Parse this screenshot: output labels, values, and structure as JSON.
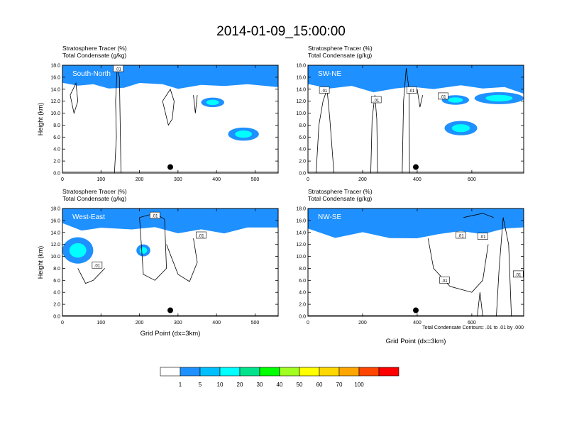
{
  "title": "2014-01-09_15:00:00",
  "colors": {
    "frame": "#000000",
    "background": "#ffffff",
    "contour": "#000000"
  },
  "chart_data": [
    {
      "type": "heatmap",
      "section_label": "South-North",
      "subtitle_lines": [
        "Stratosphere Tracer   (%)",
        "Total Condensate   (g/kg)"
      ],
      "ylabel": "Height (km)",
      "xlabel": "",
      "xlim": [
        0,
        560
      ],
      "ylim": [
        0,
        18
      ],
      "x_ticks": [
        "0",
        "100",
        "200",
        "300",
        "400",
        "500"
      ],
      "x_tick_values": [
        0,
        100,
        200,
        300,
        400,
        500
      ],
      "y_ticks": [
        "0.0",
        "2.0",
        "4.0",
        "6.0",
        "8.0",
        "10.0",
        "12.0",
        "14.0",
        "16.0",
        "18.0"
      ],
      "contour_labels": [
        ".01"
      ],
      "contour_label_pos": [
        [
          145,
          17.4
        ]
      ],
      "marker_x": 280,
      "tropopause_base": [
        [
          0,
          15.0
        ],
        [
          40,
          14.6
        ],
        [
          80,
          14.9
        ],
        [
          120,
          14.0
        ],
        [
          160,
          14.4
        ],
        [
          200,
          14.9
        ],
        [
          260,
          14.7
        ],
        [
          300,
          14.2
        ],
        [
          360,
          14.8
        ],
        [
          420,
          14.5
        ],
        [
          480,
          14.7
        ],
        [
          560,
          14.3
        ]
      ],
      "blue_blobs": [
        [
          470,
          6.5,
          40,
          1.1
        ],
        [
          390,
          11.8,
          30,
          0.8
        ]
      ],
      "cloud_outlines": [
        [
          [
            135,
            0
          ],
          [
            140,
            6
          ],
          [
            138,
            12
          ],
          [
            142,
            17.5
          ],
          [
            148,
            16
          ],
          [
            150,
            8
          ],
          [
            152,
            0
          ]
        ],
        [
          [
            20,
            13
          ],
          [
            30,
            10
          ],
          [
            40,
            12
          ],
          [
            35,
            15
          ],
          [
            20,
            13
          ]
        ],
        [
          [
            260,
            12
          ],
          [
            275,
            8
          ],
          [
            285,
            9
          ],
          [
            290,
            12
          ],
          [
            280,
            14
          ],
          [
            260,
            12
          ]
        ],
        [
          [
            340,
            13
          ],
          [
            345,
            10
          ],
          [
            350,
            13
          ]
        ]
      ]
    },
    {
      "type": "heatmap",
      "section_label": "SW-NE",
      "subtitle_lines": [
        "Stratosphere Tracer   (%)",
        "Total Condensate   (g/kg)"
      ],
      "ylabel": "",
      "xlabel": "",
      "xlim": [
        0,
        790
      ],
      "ylim": [
        0,
        18
      ],
      "x_ticks": [
        "0",
        "200",
        "400",
        "600"
      ],
      "x_tick_values": [
        0,
        200,
        400,
        600
      ],
      "y_ticks": [
        "0.0",
        "2.0",
        "4.0",
        "6.0",
        "8.0",
        "10.0",
        "12.0",
        "14.0",
        "16.0",
        "18.0"
      ],
      "contour_labels": [
        ".01",
        ".01",
        ".01",
        ".01"
      ],
      "contour_label_pos": [
        [
          60,
          13.8
        ],
        [
          250,
          12.2
        ],
        [
          380,
          13.8
        ],
        [
          495,
          12.8
        ]
      ],
      "marker_x": 395,
      "tropopause_base": [
        [
          0,
          14.8
        ],
        [
          80,
          14.2
        ],
        [
          160,
          14.7
        ],
        [
          240,
          13.6
        ],
        [
          320,
          14.1
        ],
        [
          380,
          14.5
        ],
        [
          460,
          14.0
        ],
        [
          560,
          14.6
        ],
        [
          640,
          14.2
        ],
        [
          720,
          14.5
        ],
        [
          790,
          13.4
        ]
      ],
      "blue_blobs": [
        [
          560,
          7.5,
          60,
          1.2
        ],
        [
          700,
          12.5,
          90,
          1.0
        ],
        [
          540,
          12.2,
          50,
          0.8
        ]
      ],
      "cloud_outlines": [
        [
          [
            30,
            0
          ],
          [
            40,
            8
          ],
          [
            55,
            12
          ],
          [
            70,
            14
          ],
          [
            80,
            9
          ],
          [
            95,
            0
          ]
        ],
        [
          [
            230,
            0
          ],
          [
            235,
            9
          ],
          [
            245,
            13
          ],
          [
            252,
            9
          ],
          [
            255,
            0
          ]
        ],
        [
          [
            345,
            0
          ],
          [
            350,
            12
          ],
          [
            360,
            17.5
          ],
          [
            370,
            14
          ],
          [
            372,
            0
          ]
        ],
        [
          [
            400,
            14
          ],
          [
            410,
            11
          ],
          [
            420,
            13
          ]
        ]
      ]
    },
    {
      "type": "heatmap",
      "section_label": "West-East",
      "subtitle_lines": [
        "Stratosphere Tracer   (%)",
        "Total Condensate   (g/kg)"
      ],
      "ylabel": "Height (km)",
      "xlabel": "Grid Point (dx=3km)",
      "xlim": [
        0,
        560
      ],
      "ylim": [
        0,
        18
      ],
      "x_ticks": [
        "0",
        "100",
        "200",
        "300",
        "400",
        "500"
      ],
      "x_tick_values": [
        0,
        100,
        200,
        300,
        400,
        500
      ],
      "y_ticks": [
        "0.0",
        "2.0",
        "4.0",
        "6.0",
        "8.0",
        "10.0",
        "12.0",
        "14.0",
        "16.0",
        "18.0"
      ],
      "contour_labels": [
        ".01",
        ".01",
        ".01"
      ],
      "contour_label_pos": [
        [
          90,
          8.5
        ],
        [
          240,
          16.8
        ],
        [
          360,
          13.5
        ]
      ],
      "marker_x": 280,
      "tropopause_base": [
        [
          0,
          15.5
        ],
        [
          50,
          14.2
        ],
        [
          100,
          14.9
        ],
        [
          180,
          14.5
        ],
        [
          240,
          15.0
        ],
        [
          300,
          14.0
        ],
        [
          360,
          14.6
        ],
        [
          420,
          13.8
        ],
        [
          480,
          14.7
        ],
        [
          560,
          14.8
        ]
      ],
      "blue_blobs": [
        [
          40,
          11.0,
          40,
          2.2
        ],
        [
          210,
          11.0,
          18,
          1.0
        ]
      ],
      "cloud_outlines": [
        [
          [
            200,
            16.5
          ],
          [
            240,
            17.2
          ],
          [
            265,
            16.2
          ],
          [
            270,
            8
          ],
          [
            240,
            6
          ],
          [
            210,
            7
          ],
          [
            200,
            16.5
          ]
        ],
        [
          [
            270,
            12
          ],
          [
            300,
            7
          ],
          [
            330,
            5.8
          ],
          [
            350,
            9
          ],
          [
            340,
            13
          ]
        ],
        [
          [
            40,
            8
          ],
          [
            60,
            5.5
          ],
          [
            80,
            6
          ],
          [
            110,
            8
          ]
        ]
      ]
    },
    {
      "type": "heatmap",
      "section_label": "NW-SE",
      "subtitle_lines": [
        "Stratosphere Tracer   (%)",
        "Total Condensate   (g/kg)"
      ],
      "ylabel": "",
      "xlabel": "Grid Point (dx=3km)",
      "xlim": [
        0,
        790
      ],
      "ylim": [
        0,
        18
      ],
      "x_ticks": [
        "0",
        "200",
        "400",
        "600"
      ],
      "x_tick_values": [
        0,
        200,
        400,
        600
      ],
      "y_ticks": [
        "0.0",
        "2.0",
        "4.0",
        "6.0",
        "8.0",
        "10.0",
        "12.0",
        "14.0",
        "16.0",
        "18.0"
      ],
      "contour_labels": [
        ".01",
        ".01",
        ".01",
        ".01"
      ],
      "contour_label_pos": [
        [
          560,
          13.5
        ],
        [
          640,
          13.3
        ],
        [
          500,
          6.0
        ],
        [
          770,
          7.0
        ]
      ],
      "marker_x": 395,
      "tropopause_base": [
        [
          0,
          14.6
        ],
        [
          100,
          13.2
        ],
        [
          200,
          13.9
        ],
        [
          300,
          13.2
        ],
        [
          400,
          12.9
        ],
        [
          480,
          13.6
        ],
        [
          560,
          14.2
        ],
        [
          640,
          13.8
        ],
        [
          720,
          14.8
        ],
        [
          790,
          15.0
        ]
      ],
      "blue_blobs": [],
      "cloud_outlines": [
        [
          [
            440,
            13
          ],
          [
            460,
            8
          ],
          [
            520,
            5
          ],
          [
            600,
            4
          ],
          [
            640,
            6
          ],
          [
            660,
            12
          ]
        ],
        [
          [
            620,
            0
          ],
          [
            630,
            4
          ],
          [
            640,
            0
          ]
        ],
        [
          [
            690,
            0
          ],
          [
            700,
            8
          ],
          [
            715,
            16.5
          ],
          [
            735,
            12
          ],
          [
            745,
            0
          ]
        ],
        [
          [
            570,
            16.5
          ],
          [
            640,
            17.2
          ],
          [
            680,
            16.5
          ]
        ]
      ]
    }
  ],
  "colorbar": {
    "labels": [
      "1",
      "5",
      "10",
      "20",
      "30",
      "40",
      "50",
      "60",
      "70",
      "100"
    ],
    "colors": [
      "#ffffff",
      "#1e90ff",
      "#00bfff",
      "#00ffff",
      "#00e38c",
      "#00ff00",
      "#a0ff20",
      "#ffff00",
      "#ffd700",
      "#ffa500",
      "#ff4500",
      "#ff0000"
    ]
  },
  "footnote": "Total Condensate Contours: .01 to .01 by .000"
}
